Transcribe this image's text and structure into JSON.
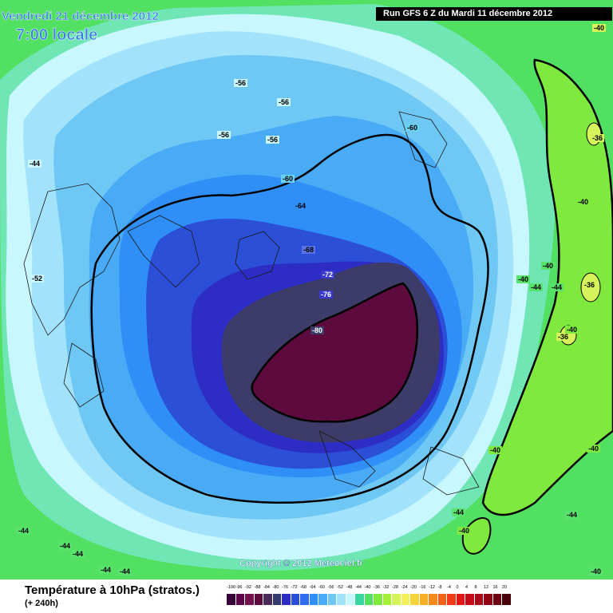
{
  "header": {
    "date_title": "Vendredi 21 décembre 2012",
    "time_title": "7:00 locale",
    "run_info": "Run GFS 6 Z du Mardi 11 décembre 2012"
  },
  "map": {
    "copyright": "Copyright © 2012 Meteociel.fr",
    "contour_labels": [
      "-56",
      "-56",
      "-56",
      "-56",
      "-60",
      "-60",
      "-64",
      "-68",
      "-72",
      "-76",
      "-80",
      "-44",
      "-52",
      "-40",
      "-36",
      "-40",
      "-40",
      "-36",
      "-40",
      "-36",
      "-40",
      "-40",
      "-40",
      "-44",
      "-44",
      "-44",
      "-44",
      "-44",
      "-44",
      "-40",
      "-44",
      "-44",
      "-44",
      "-40"
    ]
  },
  "footer": {
    "title": "Température à 10hPa (stratos.)",
    "subtitle": "(+ 240h)"
  },
  "legend": {
    "labels": [
      "-100",
      "-96",
      "-92",
      "-88",
      "-84",
      "-80",
      "-76",
      "-72",
      "-68",
      "-64",
      "-60",
      "-56",
      "-52",
      "-48",
      "-44",
      "-40",
      "-36",
      "-32",
      "-28",
      "-24",
      "-20",
      "-16",
      "-12",
      "-8",
      "-4",
      "0",
      "4",
      "8",
      "12",
      "16",
      "20"
    ],
    "colors": [
      "#38003a",
      "#5a0648",
      "#73114e",
      "#5d0a3e",
      "#4a2b5c",
      "#353a6f",
      "#2d2dc6",
      "#2b4fd6",
      "#2f6cf0",
      "#2f8ff7",
      "#49abf5",
      "#6fc8f4",
      "#a2e3fb",
      "#c9f7ff",
      "#3ad6a0",
      "#52e062",
      "#7fe93d",
      "#a6ef3c",
      "#d6f45a",
      "#f4f05a",
      "#f6d43c",
      "#f6b028",
      "#f68a1c",
      "#f66218",
      "#f03a18",
      "#e01818",
      "#c60c18",
      "#a80818",
      "#900414",
      "#6c0210",
      "#4a000a"
    ]
  }
}
